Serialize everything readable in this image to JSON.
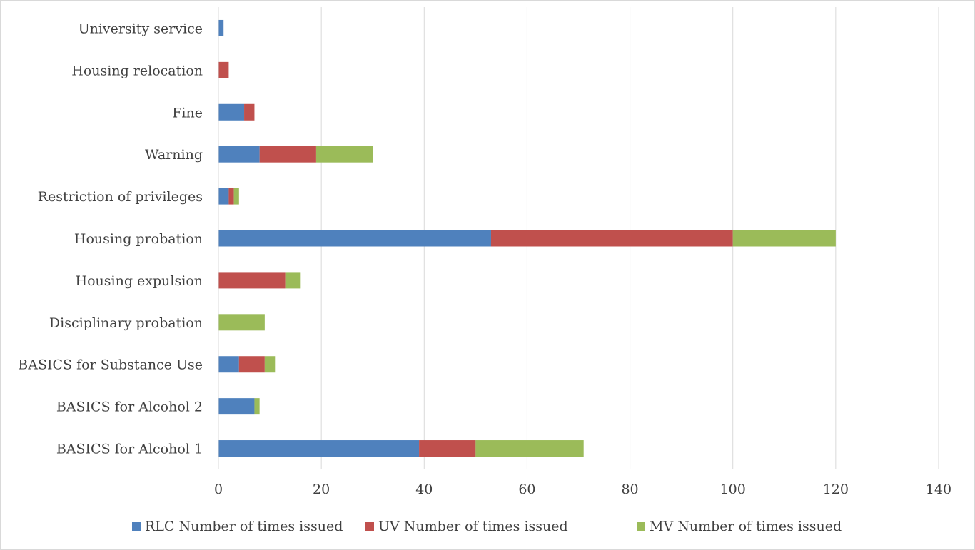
{
  "chart_data": {
    "type": "bar",
    "orientation": "horizontal",
    "stacked": true,
    "categories": [
      "BASICS for Alcohol 1",
      "BASICS for Alcohol 2",
      "BASICS for Substance Use",
      "Disciplinary probation",
      "Housing expulsion",
      "Housing probation",
      "Restriction of privileges",
      "Warning",
      "Fine",
      "Housing relocation",
      "University service"
    ],
    "series": [
      {
        "name": "RLC Number of times issued",
        "color": "#4f81bd",
        "values": [
          39,
          7,
          4,
          0,
          0,
          53,
          2,
          8,
          5,
          0,
          1
        ]
      },
      {
        "name": "UV Number of times issued",
        "color": "#c0504d",
        "values": [
          11,
          0,
          5,
          0,
          13,
          47,
          1,
          11,
          2,
          2,
          0
        ]
      },
      {
        "name": "MV Number of times issued",
        "color": "#9bbb59",
        "values": [
          21,
          1,
          2,
          9,
          3,
          20,
          1,
          11,
          0,
          0,
          0
        ]
      }
    ],
    "xlim": [
      0,
      140
    ],
    "xticks": [
      "0",
      "20",
      "40",
      "60",
      "80",
      "100",
      "120",
      "140"
    ],
    "grid": "vertical",
    "legend": "bottom"
  }
}
